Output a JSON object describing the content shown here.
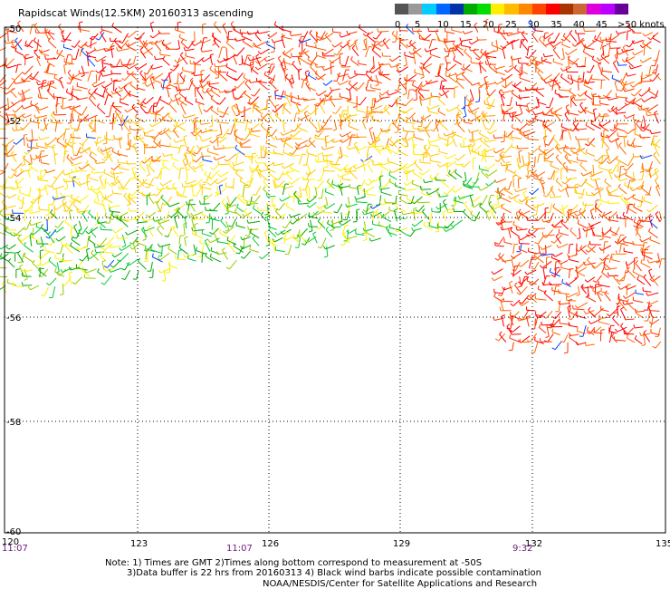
{
  "title": "Rapidscat Winds(12.5KM) 20160313 ascending",
  "colorbar": {
    "colors": [
      "#555555",
      "#999999",
      "#00ccff",
      "#0066ff",
      "#0033aa",
      "#00aa00",
      "#00dd00",
      "#ffee00",
      "#ffbb00",
      "#ff8800",
      "#ff4400",
      "#ff0000",
      "#aa3300",
      "#cc6633",
      "#dd00dd",
      "#bb00ff",
      "#660099"
    ],
    "labels": [
      "0",
      "5",
      "10",
      "15",
      "20",
      "25",
      "30",
      "35",
      "40",
      "45",
      ">50 knots"
    ]
  },
  "axes": {
    "lat_labels": [
      "-50",
      "-52",
      "-54",
      "-56",
      "-58",
      "-60"
    ],
    "lon_labels": [
      "120",
      "123",
      "126",
      "129",
      "132",
      "135"
    ],
    "time_labels": [
      "11:07",
      "11:07",
      "9:32"
    ]
  },
  "notes": {
    "line1": "Note: 1) Times are GMT 2)Times along bottom correspond to measurement at -50S",
    "line2": "3)Data buffer is 22 hrs from 20160313 4) Black wind barbs indicate possible contamination"
  },
  "credit": "NOAA/NESDIS/Center for Satellite Applications and Research"
}
